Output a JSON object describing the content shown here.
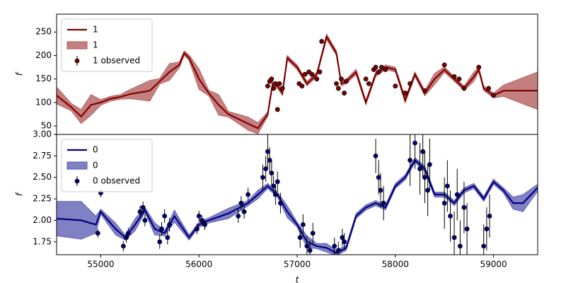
{
  "chart_data": [
    {
      "type": "line",
      "ylabel": "f",
      "xlim": [
        54550,
        59450
      ],
      "ylim": [
        32,
        288
      ],
      "yticks": [
        50,
        100,
        150,
        200,
        250
      ],
      "legend": "upper left",
      "series": [
        {
          "name": "1",
          "kind": "line",
          "color": "#800000",
          "x": [
            54550,
            54700,
            54800,
            54900,
            55000,
            55100,
            55200,
            55300,
            55500,
            55600,
            55700,
            55800,
            55850,
            55900,
            56000,
            56100,
            56200,
            56300,
            56400,
            56500,
            56600,
            56700,
            56750,
            56800,
            56850,
            56900,
            57000,
            57100,
            57200,
            57300,
            57400,
            57450,
            57500,
            57600,
            57700,
            57800,
            57900,
            58000,
            58100,
            58200,
            58300,
            58400,
            58500,
            58600,
            58700,
            58800,
            58850,
            58900,
            59000,
            59100,
            59450
          ],
          "values": [
            115,
            90,
            70,
            95,
            100,
            108,
            112,
            118,
            125,
            145,
            165,
            180,
            205,
            195,
            150,
            120,
            95,
            75,
            65,
            55,
            45,
            75,
            140,
            135,
            120,
            195,
            175,
            140,
            160,
            240,
            205,
            140,
            145,
            165,
            100,
            160,
            175,
            170,
            105,
            160,
            120,
            150,
            170,
            150,
            130,
            155,
            170,
            130,
            115,
            125,
            125
          ]
        },
        {
          "name": "1",
          "kind": "band",
          "color": "#b05555",
          "x": [
            54550,
            54700,
            54800,
            54900,
            55000,
            55100,
            55200,
            55300,
            55500,
            55600,
            55700,
            55800,
            55850,
            55900,
            56000,
            56100,
            56200,
            56300,
            56400,
            56500,
            56600,
            56700,
            56750,
            56800,
            56850,
            56900,
            57000,
            57100,
            57200,
            57300,
            57400,
            57450,
            57500,
            57600,
            57700,
            57800,
            57900,
            58000,
            58100,
            58200,
            58300,
            58400,
            58500,
            58600,
            58700,
            58800,
            58850,
            58900,
            59000,
            59100,
            59450
          ],
          "values": [
            115,
            90,
            70,
            95,
            100,
            108,
            112,
            118,
            125,
            145,
            165,
            180,
            205,
            195,
            150,
            120,
            95,
            75,
            65,
            55,
            45,
            75,
            140,
            135,
            120,
            195,
            175,
            140,
            160,
            240,
            205,
            140,
            145,
            165,
            100,
            160,
            175,
            170,
            105,
            160,
            120,
            150,
            170,
            150,
            130,
            155,
            170,
            130,
            115,
            125,
            125
          ],
          "errors": [
            18,
            8,
            15,
            22,
            6,
            5,
            5,
            10,
            22,
            6,
            18,
            6,
            5,
            6,
            22,
            6,
            22,
            6,
            10,
            14,
            12,
            5,
            5,
            5,
            5,
            5,
            5,
            5,
            5,
            6,
            5,
            5,
            5,
            6,
            5,
            5,
            5,
            5,
            6,
            5,
            6,
            12,
            6,
            5,
            5,
            10,
            5,
            5,
            5,
            12,
            40
          ]
        },
        {
          "name": "1 observed",
          "kind": "errorbar",
          "color": "#800000",
          "x": [
            56700,
            56720,
            56740,
            56760,
            56780,
            56800,
            56820,
            56850,
            57020,
            57050,
            57080,
            57120,
            57150,
            57200,
            57230,
            57250,
            57400,
            57420,
            57450,
            57480,
            57500,
            57700,
            57730,
            57780,
            57800,
            57830,
            57860,
            57900,
            58000,
            58100,
            58150,
            58300,
            58500,
            58600,
            58650,
            58700,
            58850,
            58950,
            59000
          ],
          "values": [
            135,
            145,
            150,
            130,
            140,
            85,
            140,
            130,
            140,
            135,
            160,
            165,
            160,
            150,
            165,
            230,
            140,
            130,
            150,
            120,
            145,
            150,
            140,
            170,
            175,
            165,
            175,
            170,
            135,
            120,
            140,
            125,
            180,
            155,
            150,
            130,
            175,
            130,
            115
          ],
          "errors": [
            5,
            5,
            5,
            5,
            5,
            5,
            5,
            5,
            5,
            5,
            5,
            5,
            5,
            5,
            5,
            5,
            5,
            5,
            5,
            5,
            5,
            5,
            5,
            5,
            5,
            5,
            5,
            5,
            5,
            5,
            5,
            5,
            5,
            5,
            5,
            5,
            5,
            5,
            5
          ]
        }
      ]
    },
    {
      "type": "line",
      "ylabel": "f",
      "xlabel": "t",
      "xlim": [
        54550,
        59450
      ],
      "ylim": [
        1.6,
        3.0
      ],
      "xticks": [
        55000,
        56000,
        57000,
        58000,
        59000
      ],
      "yticks": [
        {
          "value": 1.75,
          "label": "1.75"
        },
        {
          "value": 2.0,
          "label": "2.00"
        },
        {
          "value": 2.25,
          "label": "2.25"
        },
        {
          "value": 2.5,
          "label": "2.50"
        },
        {
          "value": 2.75,
          "label": "2.75"
        },
        {
          "value": 3.0,
          "label": "3.00"
        }
      ],
      "legend": "upper left",
      "series": [
        {
          "name": "0",
          "kind": "line",
          "color": "#000080",
          "x": [
            54550,
            54800,
            54950,
            55000,
            55150,
            55250,
            55350,
            55450,
            55550,
            55650,
            55750,
            55900,
            56000,
            56100,
            56300,
            56500,
            56600,
            56700,
            56800,
            56900,
            57000,
            57100,
            57200,
            57300,
            57400,
            57500,
            57600,
            57700,
            57800,
            57900,
            58000,
            58100,
            58200,
            58300,
            58400,
            58500,
            58600,
            58700,
            58800,
            58900,
            59000,
            59100,
            59200,
            59300,
            59450
          ],
          "values": [
            2.02,
            2.0,
            1.95,
            2.1,
            1.9,
            1.8,
            1.95,
            2.12,
            1.9,
            1.85,
            2.05,
            1.8,
            1.95,
            2.0,
            2.08,
            2.2,
            2.3,
            2.4,
            2.3,
            2.1,
            1.95,
            1.75,
            1.7,
            1.68,
            1.62,
            1.68,
            2.05,
            2.15,
            2.2,
            2.15,
            2.4,
            2.5,
            2.7,
            2.6,
            2.3,
            2.3,
            2.2,
            2.35,
            2.4,
            2.25,
            2.45,
            2.35,
            2.2,
            2.2,
            2.38
          ]
        },
        {
          "name": "0",
          "kind": "band",
          "color": "#5555b0",
          "x": [
            54550,
            54800,
            54950,
            55000,
            55150,
            55250,
            55350,
            55450,
            55550,
            55650,
            55750,
            55900,
            56000,
            56100,
            56300,
            56500,
            56600,
            56700,
            56800,
            56900,
            57000,
            57100,
            57200,
            57300,
            57400,
            57500,
            57600,
            57700,
            57800,
            57900,
            58000,
            58100,
            58200,
            58300,
            58400,
            58500,
            58600,
            58700,
            58800,
            58900,
            59000,
            59100,
            59200,
            59300,
            59450
          ],
          "values": [
            2.02,
            2.0,
            1.95,
            2.1,
            1.9,
            1.8,
            1.95,
            2.12,
            1.9,
            1.85,
            2.05,
            1.8,
            1.95,
            2.0,
            2.08,
            2.2,
            2.3,
            2.4,
            2.3,
            2.1,
            1.95,
            1.75,
            1.7,
            1.68,
            1.62,
            1.68,
            2.05,
            2.15,
            2.2,
            2.15,
            2.4,
            2.5,
            2.7,
            2.6,
            2.3,
            2.3,
            2.2,
            2.35,
            2.4,
            2.25,
            2.45,
            2.35,
            2.2,
            2.2,
            2.38
          ],
          "errors": [
            0.2,
            0.22,
            0.1,
            0.03,
            0.07,
            0.03,
            0.07,
            0.03,
            0.07,
            0.03,
            0.07,
            0.03,
            0.03,
            0.03,
            0.06,
            0.03,
            0.05,
            0.03,
            0.03,
            0.07,
            0.03,
            0.07,
            0.03,
            0.05,
            0.03,
            0.03,
            0.03,
            0.03,
            0.03,
            0.03,
            0.03,
            0.03,
            0.03,
            0.03,
            0.03,
            0.03,
            0.03,
            0.03,
            0.03,
            0.03,
            0.03,
            0.03,
            0.07,
            0.1,
            0.04
          ]
        },
        {
          "name": "0 observed",
          "kind": "errorbar",
          "color": "#000080",
          "x": [
            54970,
            55000,
            55230,
            55260,
            55280,
            55400,
            55430,
            55450,
            55600,
            55620,
            55650,
            55680,
            55700,
            55980,
            56000,
            56030,
            56060,
            56400,
            56430,
            56460,
            56500,
            56650,
            56680,
            56700,
            56720,
            56740,
            56760,
            56780,
            56800,
            56830,
            57030,
            57060,
            57100,
            57130,
            57160,
            57380,
            57420,
            57460,
            57480,
            57800,
            57830,
            57850,
            57880,
            58150,
            58200,
            58250,
            58280,
            58300,
            58330,
            58350,
            58500,
            58530,
            58560,
            58600,
            58630,
            58660,
            58700,
            58730,
            58900,
            58930,
            58960
          ],
          "values": [
            1.85,
            2.32,
            1.7,
            1.8,
            1.85,
            2.1,
            2.15,
            2.0,
            1.75,
            1.9,
            2.05,
            1.8,
            1.95,
            1.9,
            2.05,
            2.0,
            1.95,
            2.05,
            2.2,
            2.1,
            2.3,
            2.5,
            2.6,
            2.8,
            2.7,
            2.55,
            2.4,
            2.3,
            2.45,
            2.2,
            1.8,
            1.95,
            1.7,
            1.65,
            1.85,
            1.7,
            1.65,
            1.8,
            1.75,
            2.75,
            2.5,
            2.35,
            2.2,
            2.7,
            2.9,
            2.6,
            2.8,
            2.5,
            2.35,
            2.65,
            2.2,
            2.4,
            2.05,
            1.8,
            2.3,
            1.7,
            2.15,
            1.9,
            1.7,
            1.9,
            2.05
          ],
          "errors": [
            0.05,
            0.05,
            0.06,
            0.06,
            0.06,
            0.07,
            0.07,
            0.07,
            0.08,
            0.08,
            0.08,
            0.08,
            0.08,
            0.06,
            0.06,
            0.06,
            0.06,
            0.08,
            0.08,
            0.08,
            0.08,
            0.15,
            0.15,
            0.2,
            0.15,
            0.15,
            0.12,
            0.12,
            0.12,
            0.12,
            0.12,
            0.12,
            0.12,
            0.12,
            0.12,
            0.1,
            0.1,
            0.1,
            0.1,
            0.2,
            0.2,
            0.2,
            0.2,
            0.3,
            0.3,
            0.3,
            0.3,
            0.3,
            0.3,
            0.3,
            0.3,
            0.3,
            0.3,
            0.3,
            0.3,
            0.3,
            0.3,
            0.3,
            0.25,
            0.25,
            0.25
          ]
        }
      ]
    }
  ]
}
